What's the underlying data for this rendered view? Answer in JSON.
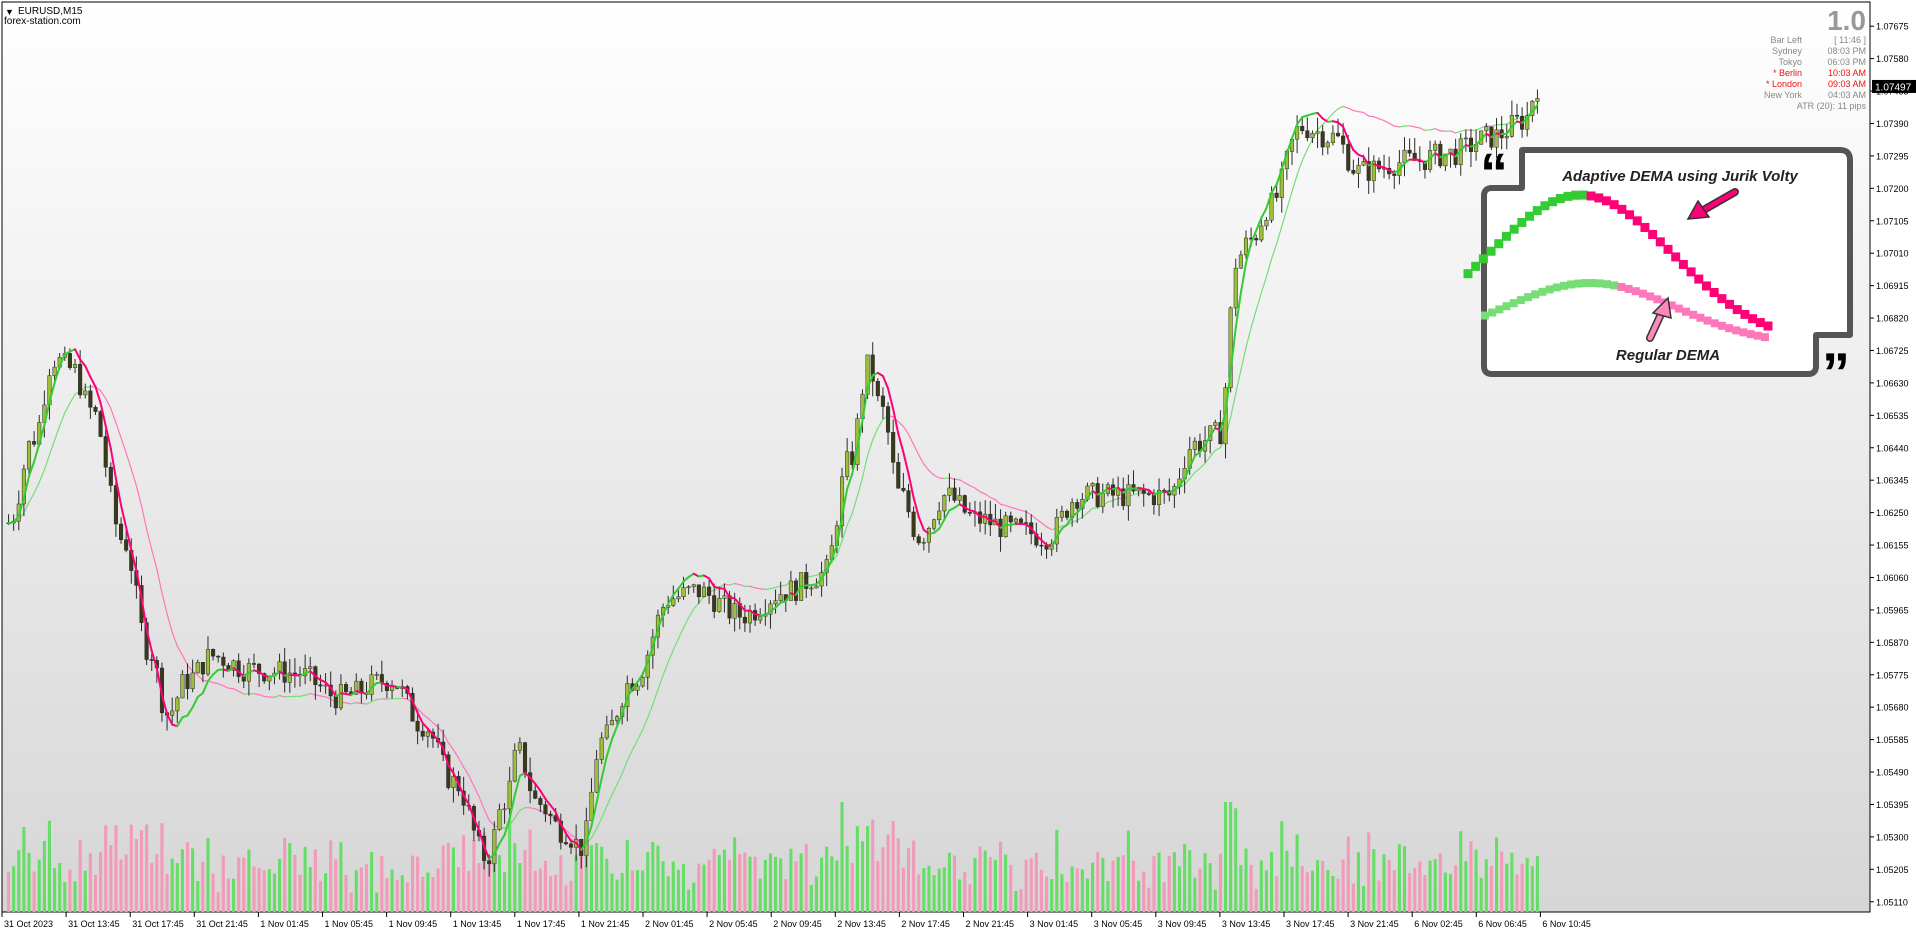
{
  "header": {
    "symbol": "EURUSD,M15",
    "watermark": "forex-station.com"
  },
  "info_panel": {
    "version": "1.0",
    "rows": [
      {
        "label": "Bar Left",
        "value": "[ 11:46 ]",
        "highlight": false
      },
      {
        "label": "Sydney",
        "value": "08:03 PM",
        "highlight": false
      },
      {
        "label": "Tokyo",
        "value": "06:03 PM",
        "highlight": false
      },
      {
        "label": "* Berlin",
        "value": "10:03 AM",
        "highlight": true
      },
      {
        "label": "* London",
        "value": "09:03 AM",
        "highlight": true
      },
      {
        "label": "New York",
        "value": "04:03 AM",
        "highlight": false
      }
    ],
    "atr": "ATR (20): 11 pips",
    "highlight_color": "#ee1111",
    "text_color": "#888888"
  },
  "legend_box": {
    "title": "Adaptive DEMA using Jurik Volty",
    "subtitle": "Regular DEMA",
    "quote_open": "“",
    "quote_close": "”"
  },
  "colors": {
    "background_top": "#ffffff",
    "background_bottom": "#d6d6d6",
    "candle_up": "#9bbf3c",
    "candle_down": "#3a3a1a",
    "candle_wick": "#2a2a2a",
    "adaptive_up": "#33cc33",
    "adaptive_down": "#ff0077",
    "regular_up": "#77dd77",
    "regular_down": "#ff77bb",
    "volume_up": "#66dd66",
    "volume_down": "#f29ab8",
    "price_tag_bg": "#000000",
    "price_tag_fg": "#ffffff",
    "axis": "#000000"
  },
  "chart_data": {
    "type": "candlestick",
    "symbol": "EURUSD",
    "timeframe": "M15",
    "current_price": "1.07497",
    "ylim": [
      1.0508,
      1.0774
    ],
    "y_ticks": [
      "1.07675",
      "1.07580",
      "1.07485",
      "1.07390",
      "1.07295",
      "1.07200",
      "1.07105",
      "1.07010",
      "1.06915",
      "1.06820",
      "1.06725",
      "1.06630",
      "1.06535",
      "1.06440",
      "1.06345",
      "1.06250",
      "1.06155",
      "1.06060",
      "1.05965",
      "1.05870",
      "1.05775",
      "1.05680",
      "1.05585",
      "1.05490",
      "1.05395",
      "1.05300",
      "1.05205",
      "1.05110"
    ],
    "x_ticks": [
      "31 Oct 2023",
      "31 Oct 13:45",
      "31 Oct 17:45",
      "31 Oct 21:45",
      "1 Nov 01:45",
      "1 Nov 05:45",
      "1 Nov 09:45",
      "1 Nov 13:45",
      "1 Nov 17:45",
      "1 Nov 21:45",
      "2 Nov 01:45",
      "2 Nov 05:45",
      "2 Nov 09:45",
      "2 Nov 13:45",
      "2 Nov 17:45",
      "2 Nov 21:45",
      "3 Nov 01:45",
      "3 Nov 05:45",
      "3 Nov 09:45",
      "3 Nov 13:45",
      "3 Nov 17:45",
      "3 Nov 21:45",
      "6 Nov 02:45",
      "6 Nov 06:45",
      "6 Nov 10:45"
    ],
    "bar_count": 300,
    "price_path": [
      [
        0,
        1.0622
      ],
      [
        4,
        1.0647
      ],
      [
        7,
        1.067
      ],
      [
        10,
        1.0667
      ],
      [
        13,
        1.0655
      ],
      [
        18,
        1.0617
      ],
      [
        22,
        1.0585
      ],
      [
        25,
        1.0566
      ],
      [
        28,
        1.0576
      ],
      [
        32,
        1.0583
      ],
      [
        38,
        1.0579
      ],
      [
        45,
        1.0578
      ],
      [
        52,
        1.0571
      ],
      [
        60,
        1.0576
      ],
      [
        65,
        1.0563
      ],
      [
        70,
        1.0546
      ],
      [
        75,
        1.0524
      ],
      [
        78,
        1.0541
      ],
      [
        80,
        1.0555
      ],
      [
        83,
        1.054
      ],
      [
        87,
        1.0532
      ],
      [
        90,
        1.0527
      ],
      [
        93,
        1.0558
      ],
      [
        98,
        1.0576
      ],
      [
        104,
        1.06
      ],
      [
        108,
        1.0602
      ],
      [
        115,
        1.0595
      ],
      [
        122,
        1.0602
      ],
      [
        128,
        1.0607
      ],
      [
        132,
        1.064
      ],
      [
        135,
        1.0668
      ],
      [
        137,
        1.0655
      ],
      [
        140,
        1.063
      ],
      [
        143,
        1.0618
      ],
      [
        147,
        1.063
      ],
      [
        152,
        1.0623
      ],
      [
        158,
        1.062
      ],
      [
        163,
        1.0618
      ],
      [
        168,
        1.063
      ],
      [
        175,
        1.063
      ],
      [
        182,
        1.063
      ],
      [
        186,
        1.0645
      ],
      [
        190,
        1.0648
      ],
      [
        193,
        1.07
      ],
      [
        195,
        1.0705
      ],
      [
        198,
        1.0715
      ],
      [
        203,
        1.0738
      ],
      [
        208,
        1.0735
      ],
      [
        212,
        1.0725
      ],
      [
        220,
        1.0728
      ],
      [
        226,
        1.073
      ],
      [
        233,
        1.0735
      ],
      [
        238,
        1.074
      ],
      [
        240,
        1.075
      ]
    ]
  }
}
